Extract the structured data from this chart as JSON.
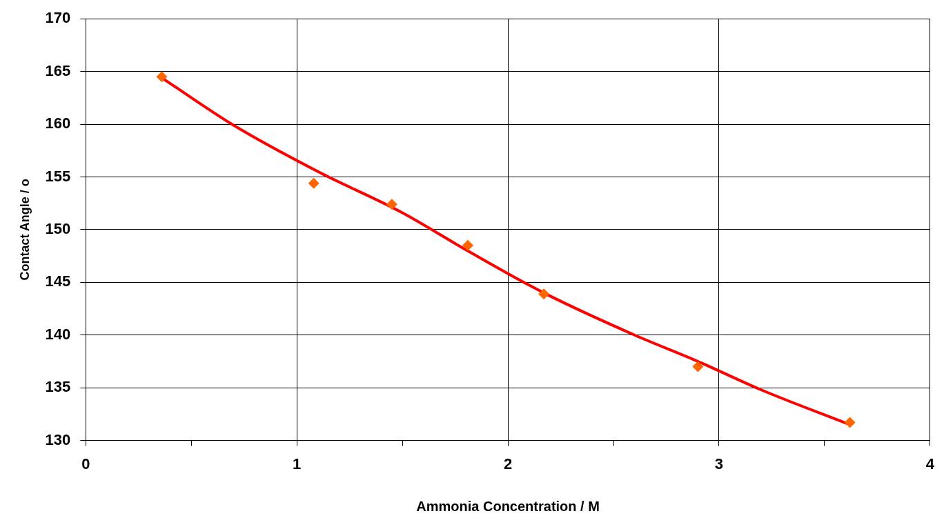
{
  "chart_data": {
    "type": "scatter",
    "xlabel": "Ammonia Concentration / M",
    "ylabel": "Contact Angle / o",
    "xlim": [
      0,
      4
    ],
    "xticks": [
      0,
      {
        "value": 0.5,
        "label": null
      },
      1,
      {
        "value": 1.5,
        "label": null
      },
      2,
      {
        "value": 2.5,
        "label": null
      },
      3,
      {
        "value": 3.5,
        "label": null
      },
      4
    ],
    "ylim": [
      130,
      170
    ],
    "yticks": [
      130,
      135,
      140,
      145,
      150,
      155,
      160,
      165,
      170
    ],
    "grid": true,
    "legend": false,
    "series": [
      {
        "marker": "diamond",
        "color": "#ff6600",
        "x": [
          0.36,
          1.08,
          1.45,
          1.81,
          2.17,
          2.9,
          3.62
        ],
        "values": [
          164.5,
          154.4,
          152.4,
          148.5,
          143.9,
          137.0,
          131.7
        ]
      },
      {
        "type": "line",
        "marker": "none",
        "line_style": "solid",
        "color": "#ff0000",
        "x": [
          0.36,
          0.7,
          1.1,
          1.5,
          1.8,
          2.17,
          2.6,
          2.9,
          3.2,
          3.62
        ],
        "values": [
          164.4,
          159.9,
          155.5,
          151.6,
          148.1,
          144.0,
          140.0,
          137.5,
          134.8,
          131.5
        ]
      }
    ]
  }
}
